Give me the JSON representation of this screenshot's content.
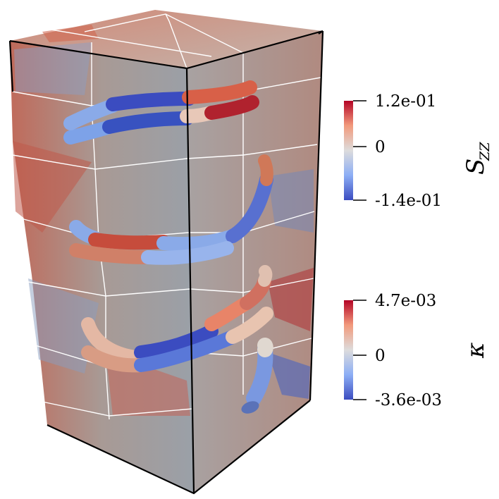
{
  "colorbars": {
    "stress": {
      "max_label": "1.2e-01",
      "mid_label": "0",
      "min_label": "-1.4e-01",
      "title_main": "S",
      "title_sub": "ZZ"
    },
    "curvature": {
      "max_label": "4.7e-03",
      "mid_label": "0",
      "min_label": "-3.6e-03",
      "title": "κ"
    }
  },
  "colormap": {
    "high": "#b40426",
    "mid": "#dddddd",
    "low": "#3b4cc0"
  }
}
